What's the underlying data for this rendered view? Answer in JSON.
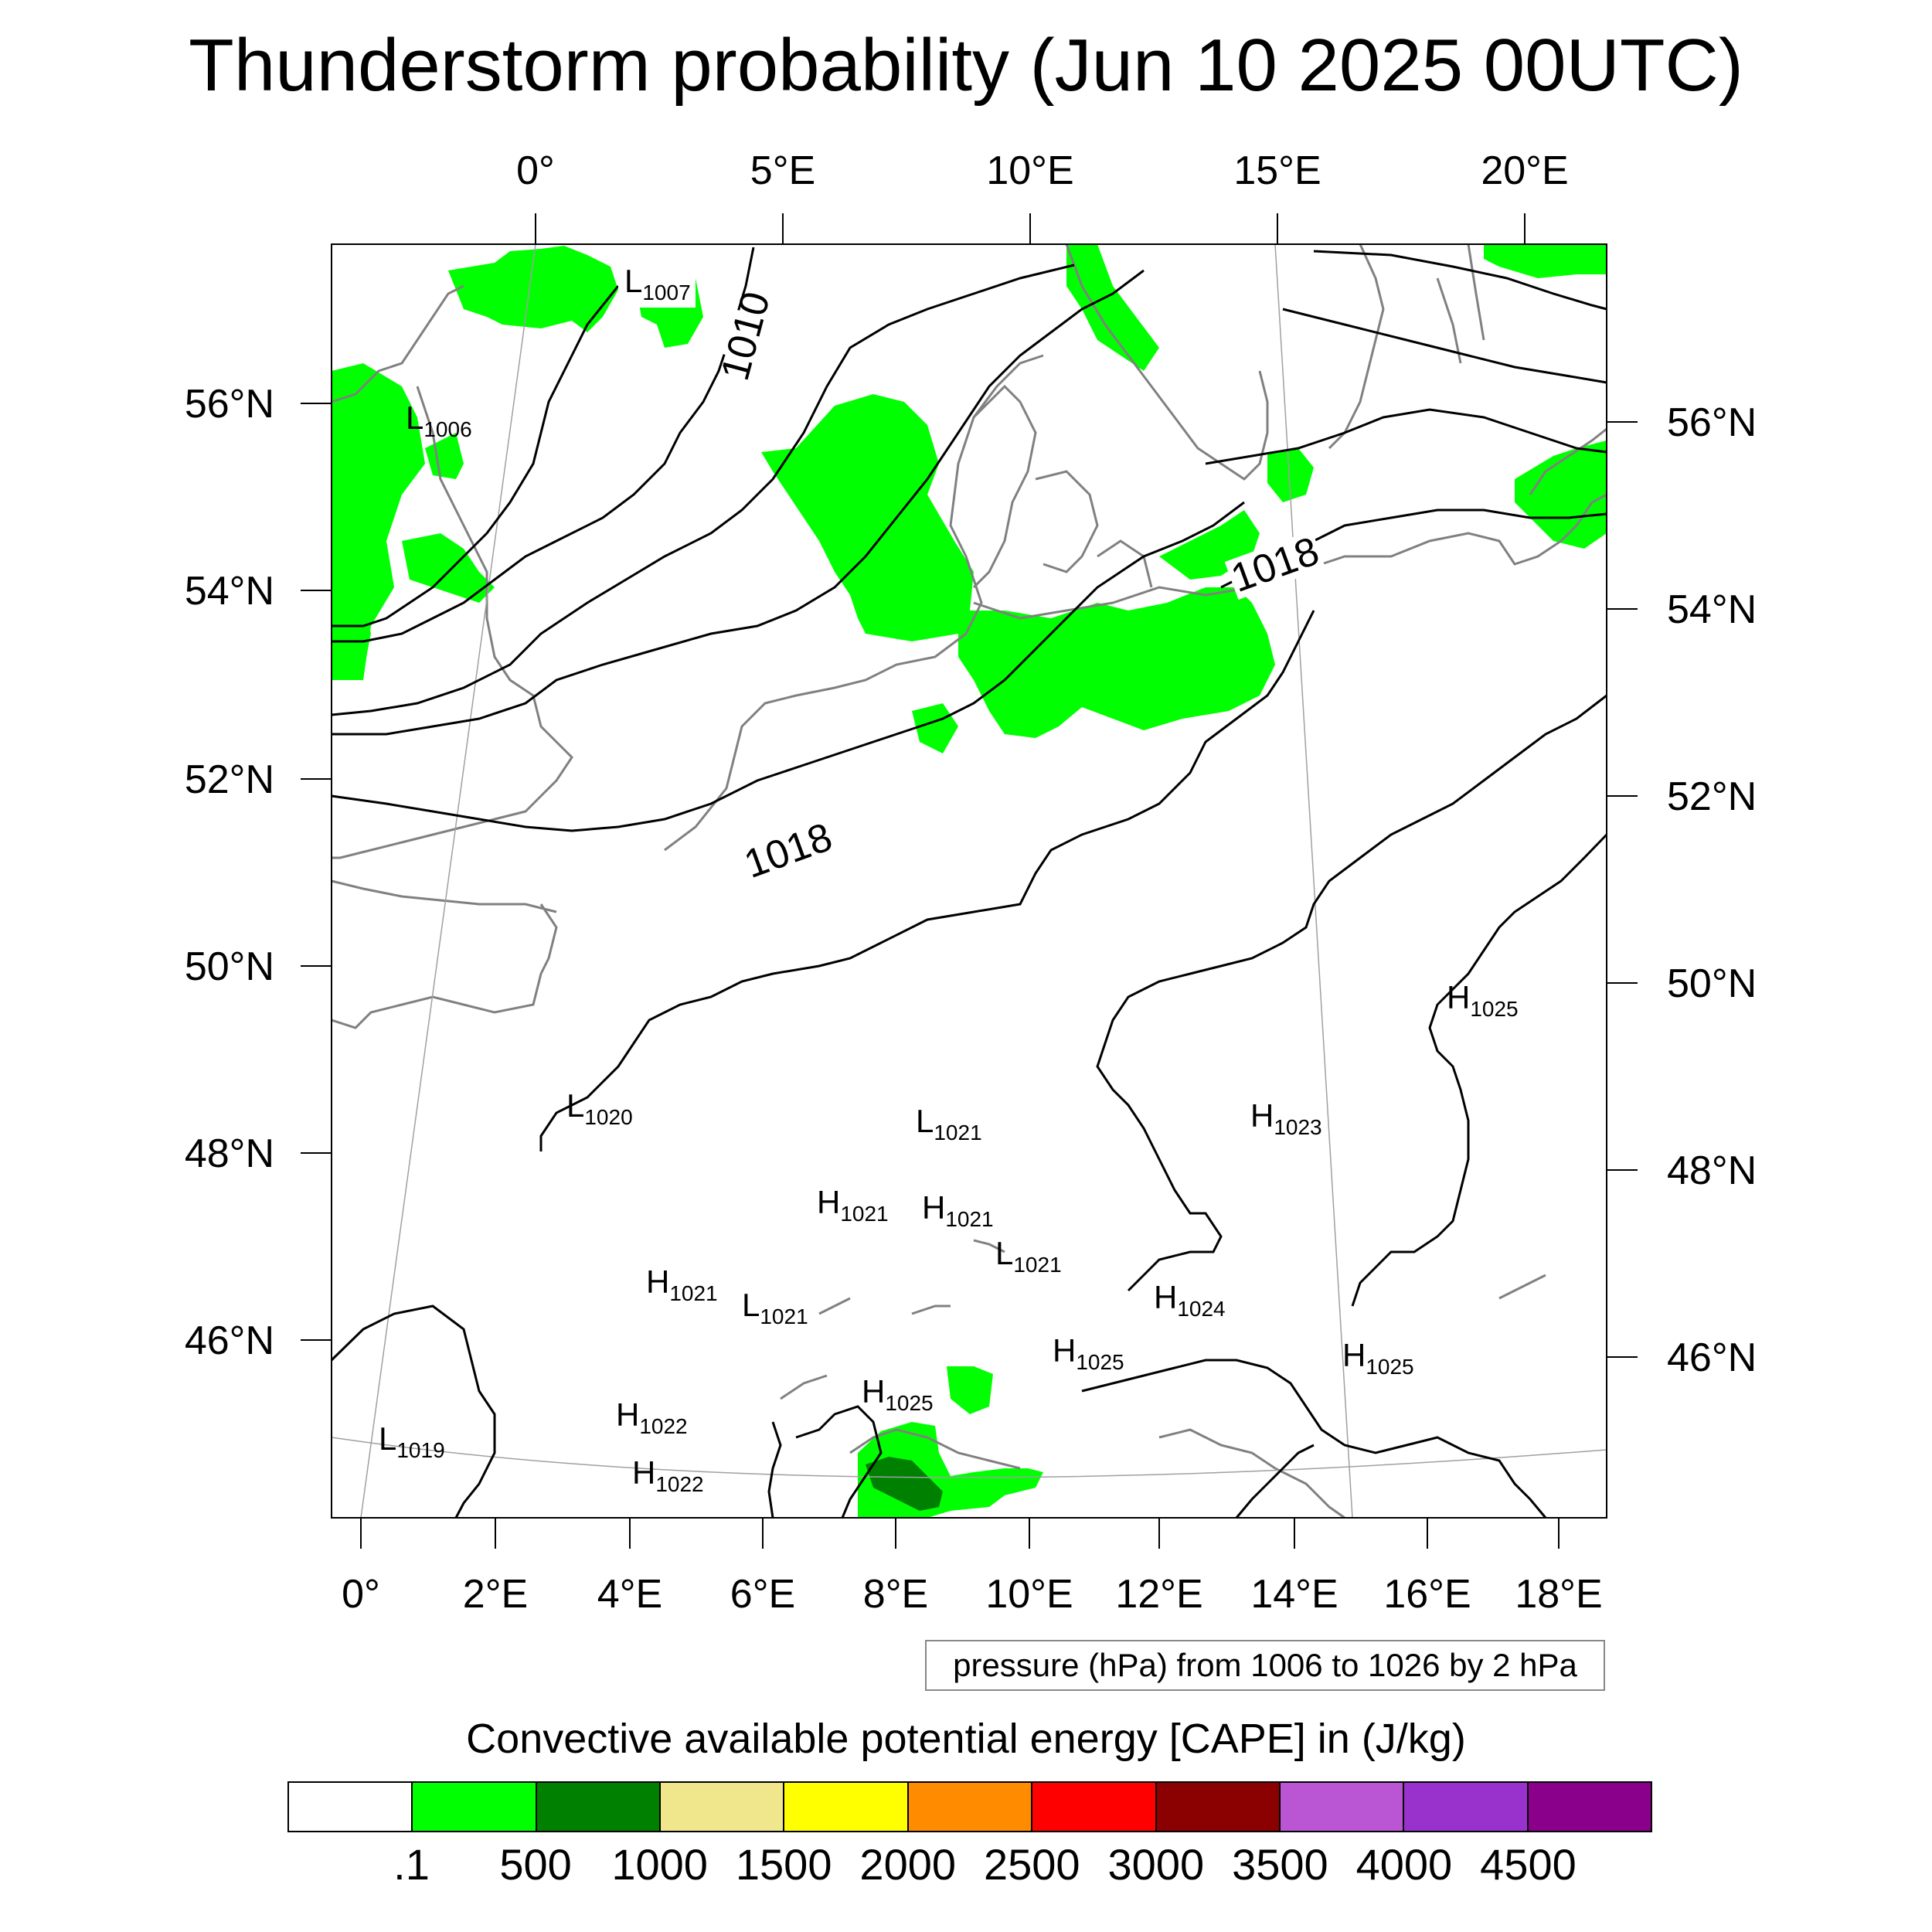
{
  "title": "Thunderstorm probability (Jun 10 2025 00UTC)",
  "map": {
    "top_lon_labels": [
      "0°",
      "5°E",
      "10°E",
      "15°E",
      "20°E"
    ],
    "bottom_lon_labels": [
      "0°",
      "2°E",
      "4°E",
      "6°E",
      "8°E",
      "10°E",
      "12°E",
      "14°E",
      "16°E",
      "18°E"
    ],
    "left_lat_labels": [
      "56°N",
      "54°N",
      "52°N",
      "50°N",
      "48°N",
      "46°N"
    ],
    "right_lat_labels": [
      "56°N",
      "54°N",
      "52°N",
      "50°N",
      "48°N",
      "46°N"
    ],
    "isobar_labels": [
      "1010",
      "1018",
      "1018"
    ],
    "pressure_centers": [
      {
        "type": "L",
        "value": "1007"
      },
      {
        "type": "L",
        "value": "1006"
      },
      {
        "type": "L",
        "value": "1020"
      },
      {
        "type": "L",
        "value": "1021"
      },
      {
        "type": "H",
        "value": "1025"
      },
      {
        "type": "H",
        "value": "1023"
      },
      {
        "type": "H",
        "value": "1021"
      },
      {
        "type": "H",
        "value": "1021"
      },
      {
        "type": "L",
        "value": "1021"
      },
      {
        "type": "H",
        "value": "1021"
      },
      {
        "type": "L",
        "value": "1021"
      },
      {
        "type": "H",
        "value": "1024"
      },
      {
        "type": "H",
        "value": "1025"
      },
      {
        "type": "H",
        "value": "1025"
      },
      {
        "type": "H",
        "value": "1025"
      },
      {
        "type": "H",
        "value": "1022"
      },
      {
        "type": "L",
        "value": "1019"
      },
      {
        "type": "H",
        "value": "1022"
      }
    ],
    "colors": {
      "cape_low": "#00ff00",
      "cape_mid": "#008000",
      "coastline": "#808080",
      "isobar": "#000000"
    }
  },
  "info_box": "pressure (hPa) from 1006 to 1026 by 2 hPa",
  "cape_title": "Convective available potential energy [CAPE] in (J/kg)",
  "colorbar": {
    "colors": [
      "#ffffff",
      "#00ff00",
      "#008000",
      "#f0e68c",
      "#ffff00",
      "#ff8c00",
      "#ff0000",
      "#8b0000",
      "#ba55d3",
      "#9932cc",
      "#8b008b"
    ],
    "labels": [
      ".1",
      "500",
      "1000",
      "1500",
      "2000",
      "2500",
      "3000",
      "3500",
      "4000",
      "4500"
    ]
  }
}
